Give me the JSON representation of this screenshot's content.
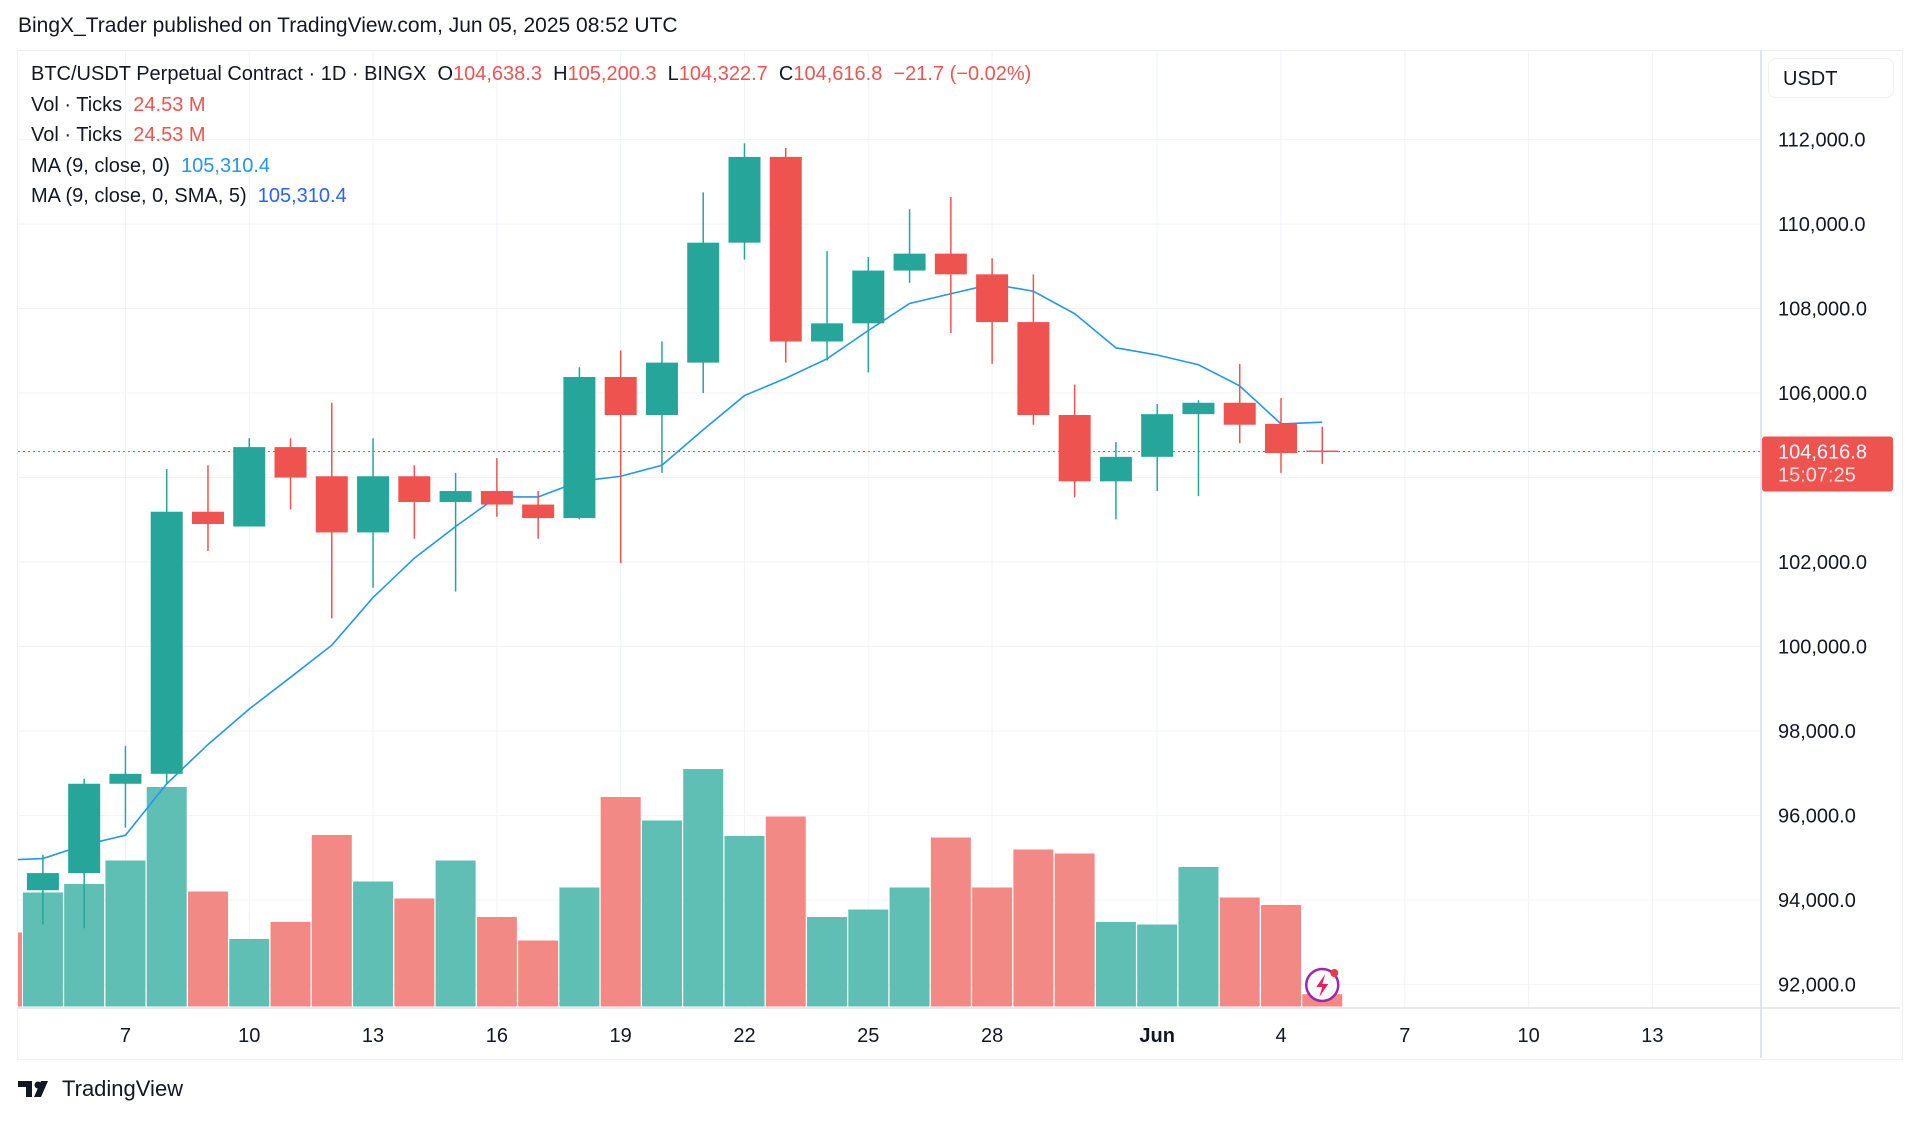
{
  "header": {
    "published": "BingX_Trader published on TradingView.com, Jun 05, 2025 08:52 UTC"
  },
  "legend": {
    "symbol": "BTC/USDT Perpetual Contract · 1D · BINGX",
    "o_label": "O",
    "o": "104,638.3",
    "h_label": "H",
    "h": "105,200.3",
    "l_label": "L",
    "l": "104,322.7",
    "c_label": "C",
    "c": "104,616.8",
    "change": "−21.7 (−0.02%)",
    "vol1_label": "Vol · Ticks",
    "vol1": "24.53 M",
    "vol2_label": "Vol · Ticks",
    "vol2": "24.53 M",
    "ma1_label": "MA (9, close, 0)",
    "ma1": "105,310.4",
    "ma2_label": "MA (9, close, 0, SMA, 5)",
    "ma2": "105,310.4"
  },
  "currency": "USDT",
  "last_price": {
    "price": "104,616.8",
    "countdown": "15:07:25"
  },
  "footer": {
    "brand": "TradingView"
  },
  "colors": {
    "up": "#26a69a",
    "down": "#ef5350",
    "ma": "#2196f3",
    "vol_up": "#5fbfb4",
    "vol_down": "#f28985"
  },
  "chart_data": {
    "type": "candlestick",
    "title": "BTC/USDT Perpetual Contract · 1D · BINGX",
    "ylim": [
      92000,
      112000
    ],
    "y_ticks": [
      "112,000.0",
      "110,000.0",
      "108,000.0",
      "106,000.0",
      "102,000.0",
      "100,000.0",
      "98,000.0",
      "96,000.0",
      "94,000.0",
      "92,000.0"
    ],
    "y_tick_values": [
      112000,
      110000,
      108000,
      106000,
      102000,
      100000,
      98000,
      96000,
      94000,
      92000
    ],
    "x_ticks": [
      {
        "i": 2,
        "label": "7"
      },
      {
        "i": 5,
        "label": "10"
      },
      {
        "i": 8,
        "label": "13"
      },
      {
        "i": 11,
        "label": "16"
      },
      {
        "i": 14,
        "label": "19"
      },
      {
        "i": 17,
        "label": "22"
      },
      {
        "i": 20,
        "label": "25"
      },
      {
        "i": 23,
        "label": "28"
      },
      {
        "i": 27,
        "label": "Jun",
        "bold": true
      },
      {
        "i": 30,
        "label": "4"
      },
      {
        "i": 33,
        "label": "7"
      },
      {
        "i": 36,
        "label": "10"
      },
      {
        "i": 39,
        "label": "13"
      }
    ],
    "ohlc": [
      [
        94230,
        95070,
        93420,
        94635
      ],
      [
        94635,
        96870,
        93330,
        96750
      ],
      [
        96750,
        97650,
        95710,
        96985
      ],
      [
        96985,
        104200,
        96750,
        103190
      ],
      [
        103190,
        104290,
        102260,
        102900
      ],
      [
        102840,
        104930,
        102840,
        104720
      ],
      [
        104720,
        104930,
        103245,
        104000
      ],
      [
        104030,
        105770,
        100665,
        102700
      ],
      [
        102700,
        104930,
        101390,
        104030
      ],
      [
        104030,
        104290,
        102550,
        103420
      ],
      [
        103420,
        104110,
        101300,
        103680
      ],
      [
        103680,
        104460,
        103070,
        103360
      ],
      [
        103360,
        103680,
        102550,
        103040
      ],
      [
        103040,
        106610,
        103010,
        106380
      ],
      [
        106380,
        107010,
        101970,
        105480
      ],
      [
        105480,
        107220,
        104110,
        106720
      ],
      [
        106720,
        110750,
        106000,
        109560
      ],
      [
        109560,
        111910,
        109160,
        111590
      ],
      [
        111590,
        111800,
        106720,
        107220
      ],
      [
        107220,
        109360,
        106770,
        107650
      ],
      [
        107650,
        109220,
        106490,
        108900
      ],
      [
        108900,
        110350,
        108610,
        109300
      ],
      [
        109300,
        110640,
        107420,
        108810
      ],
      [
        108810,
        109190,
        106690,
        107680
      ],
      [
        107680,
        108810,
        105250,
        105480
      ],
      [
        105480,
        106200,
        103530,
        103910
      ],
      [
        103910,
        104840,
        103010,
        104490
      ],
      [
        104490,
        105740,
        103680,
        105500
      ],
      [
        105500,
        105830,
        103560,
        105770
      ],
      [
        105770,
        106690,
        104810,
        105250
      ],
      [
        105270,
        105880,
        104110,
        104580
      ],
      [
        104638.3,
        105200.3,
        104322.7,
        104616.8
      ]
    ],
    "ma": [
      94980,
      95300,
      95530,
      96750,
      97680,
      98520,
      99270,
      100030,
      101160,
      102090,
      102840,
      103540,
      103540,
      103910,
      104030,
      104290,
      105130,
      105940,
      106350,
      106810,
      107480,
      108120,
      108350,
      108580,
      108410,
      107880,
      107070,
      106900,
      106670,
      106170,
      105270,
      105310.4
    ],
    "volume_m": [
      228,
      245,
      292,
      439,
      230,
      135,
      169,
      343,
      250,
      216,
      292,
      179,
      132,
      238,
      419,
      372,
      475,
      341,
      380,
      179,
      194,
      238,
      338,
      238,
      314,
      306,
      169,
      164,
      279,
      218,
      203,
      24.53
    ]
  }
}
